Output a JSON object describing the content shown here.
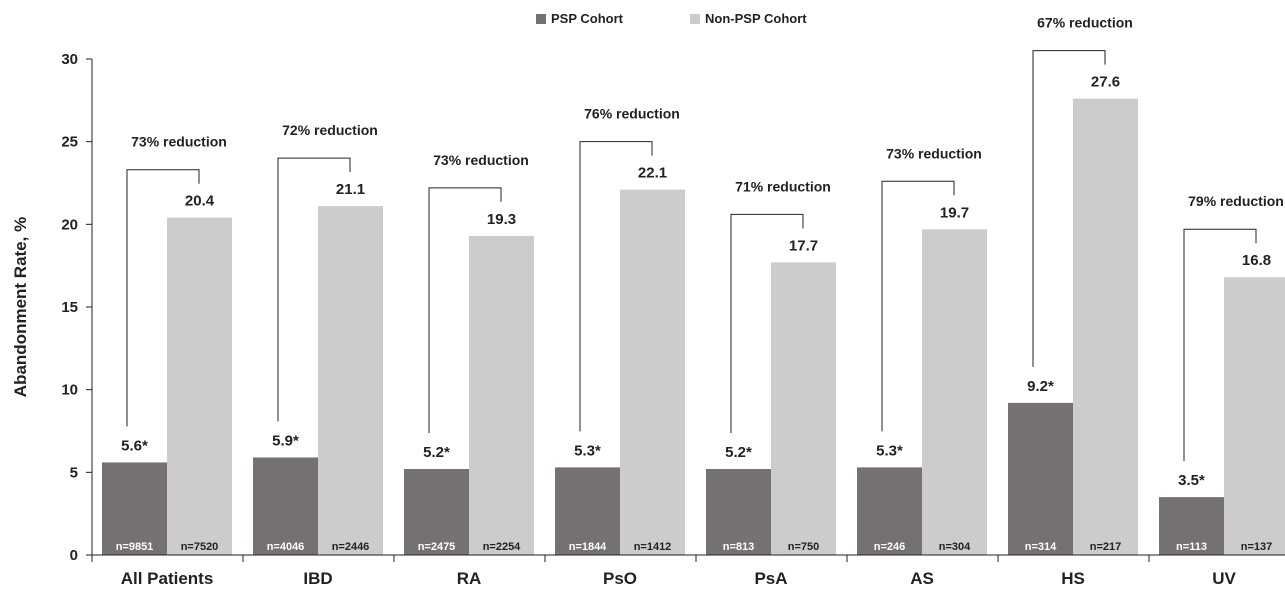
{
  "chart_data": {
    "type": "bar",
    "ylabel": "Abandonment Rate, %",
    "ylim": [
      0,
      30
    ],
    "yticks": [
      "0",
      "5",
      "10",
      "15",
      "20",
      "25",
      "30"
    ],
    "legend_position": "top-center",
    "colors": {
      "psp": "#767171",
      "non_psp": "#cccccc"
    },
    "categories": [
      "All Patients",
      "IBD",
      "RA",
      "PsO",
      "PsA",
      "AS",
      "HS",
      "UV"
    ],
    "series": [
      {
        "name": "PSP Cohort",
        "values": [
          5.6,
          5.9,
          5.2,
          5.3,
          5.2,
          5.3,
          9.2,
          3.5
        ],
        "labels": [
          "5.6*",
          "5.9*",
          "5.2*",
          "5.3*",
          "5.2*",
          "5.3*",
          "9.2*",
          "3.5*"
        ],
        "n": [
          "n=9851",
          "n=4046",
          "n=2475",
          "n=1844",
          "n=813",
          "n=246",
          "n=314",
          "n=113"
        ]
      },
      {
        "name": "Non-PSP Cohort",
        "values": [
          20.4,
          21.1,
          19.3,
          22.1,
          17.7,
          19.7,
          27.6,
          16.8
        ],
        "labels": [
          "20.4",
          "21.1",
          "19.3",
          "22.1",
          "17.7",
          "19.7",
          "27.6",
          "16.8"
        ],
        "n": [
          "n=7520",
          "n=2446",
          "n=2254",
          "n=1412",
          "n=750",
          "n=304",
          "n=217",
          "n=137"
        ]
      }
    ],
    "annotations": [
      "73% reduction",
      "72% reduction",
      "73% reduction",
      "76% reduction",
      "71% reduction",
      "73% reduction",
      "67% reduction",
      "79% reduction"
    ]
  }
}
